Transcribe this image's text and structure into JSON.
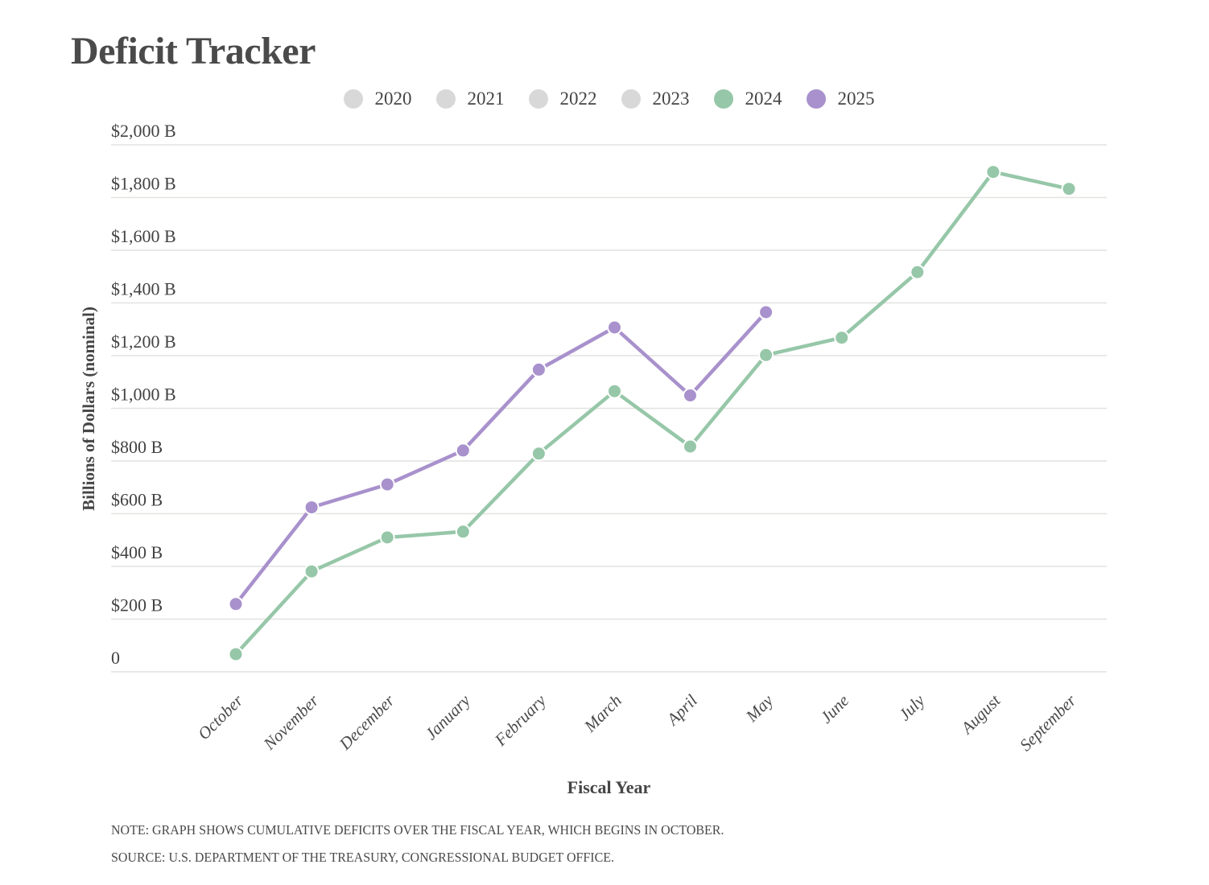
{
  "title": "Deficit Tracker",
  "legend": {
    "items": [
      {
        "label": "2020",
        "color": "#d8d8d8",
        "active": false
      },
      {
        "label": "2021",
        "color": "#d8d8d8",
        "active": false
      },
      {
        "label": "2022",
        "color": "#d8d8d8",
        "active": false
      },
      {
        "label": "2023",
        "color": "#d8d8d8",
        "active": false
      },
      {
        "label": "2024",
        "color": "#96c7a8",
        "active": true
      },
      {
        "label": "2025",
        "color": "#a891cc",
        "active": true
      }
    ]
  },
  "chart_data": {
    "type": "line",
    "title": "Deficit Tracker",
    "categories": [
      "October",
      "November",
      "December",
      "January",
      "February",
      "March",
      "April",
      "May",
      "June",
      "July",
      "August",
      "September"
    ],
    "series": [
      {
        "name": "2024",
        "color": "#96c7a8",
        "values": [
          67,
          381,
          510,
          532,
          828,
          1065,
          855,
          1202,
          1268,
          1517,
          1897,
          1833
        ]
      },
      {
        "name": "2025",
        "color": "#a891cc",
        "values": [
          257,
          624,
          711,
          840,
          1147,
          1307,
          1049,
          1365
        ]
      }
    ],
    "xlabel": "Fiscal Year",
    "ylabel": "Billions of Dollars (nominal)",
    "ylim": [
      0,
      2000
    ],
    "yticks": [
      {
        "value": 2000,
        "label": "$2,000 B"
      },
      {
        "value": 1800,
        "label": "$1,800 B"
      },
      {
        "value": 1600,
        "label": "$1,600 B"
      },
      {
        "value": 1400,
        "label": "$1,400 B"
      },
      {
        "value": 1200,
        "label": "$1,200 B"
      },
      {
        "value": 1000,
        "label": "$1,000 B"
      },
      {
        "value": 800,
        "label": "$800 B"
      },
      {
        "value": 600,
        "label": "$600 B"
      },
      {
        "value": 400,
        "label": "$400 B"
      },
      {
        "value": 200,
        "label": "$200 B"
      },
      {
        "value": 0,
        "label": "0"
      }
    ],
    "grid": true,
    "legend_position": "top",
    "units": "billions of dollars"
  },
  "note": "NOTE: GRAPH SHOWS CUMULATIVE DEFICITS OVER THE FISCAL YEAR, WHICH BEGINS IN OCTOBER.",
  "source": "SOURCE: U.S. DEPARTMENT OF THE TREASURY, CONGRESSIONAL BUDGET OFFICE.",
  "colors": {
    "grid": "#e2e2e0",
    "text": "#474747",
    "tick_text": "#424242",
    "inactive": "#d8d8d8",
    "series_2024": "#96c7a8",
    "series_2025": "#a891cc"
  }
}
